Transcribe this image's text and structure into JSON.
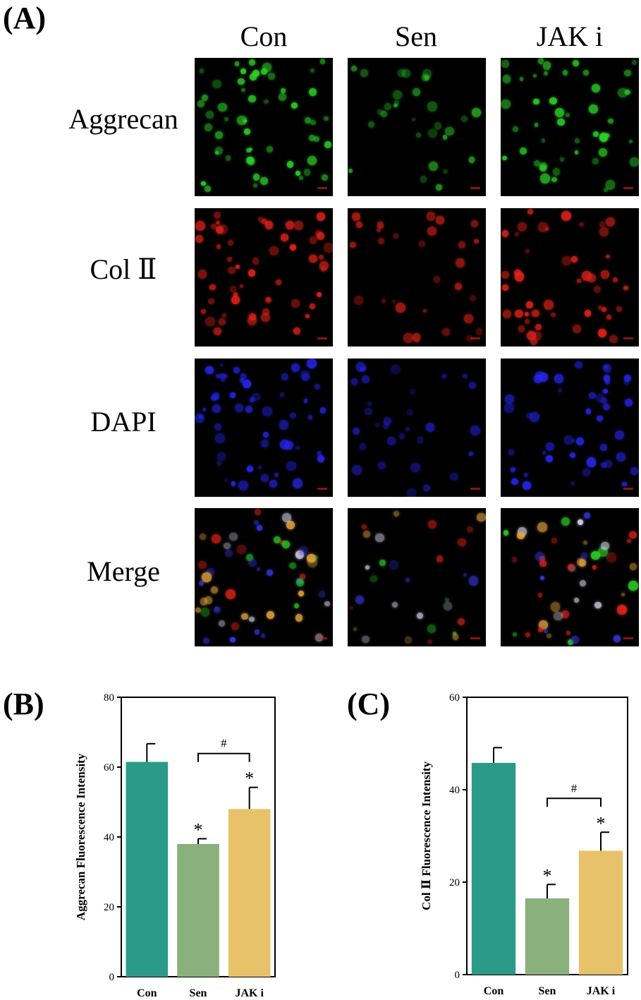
{
  "panel_a": {
    "letter": "(A)",
    "columns": [
      "Con",
      "Sen",
      "JAK i"
    ],
    "rows": [
      {
        "label": "Aggrecan",
        "color": "#2fd12a"
      },
      {
        "label": "Col Ⅱ",
        "color": "#e0241b"
      },
      {
        "label": "DAPI",
        "color": "#2626e6"
      },
      {
        "label": "Merge",
        "color": "#c8c8e0"
      }
    ]
  },
  "panel_b": {
    "letter": "(B)"
  },
  "panel_c": {
    "letter": "(C)"
  },
  "chart_data": [
    {
      "type": "bar",
      "panel": "B",
      "categories": [
        "Con",
        "Sen",
        "JAK i"
      ],
      "values": [
        61.5,
        38,
        48
      ],
      "errors": [
        5.2,
        1.5,
        6.2
      ],
      "colors": [
        "#2b9b88",
        "#8ab07c",
        "#e8c26a"
      ],
      "ylabel": "Aggrecan Fluorescence Intensity",
      "ylim": [
        0,
        80
      ],
      "yticks": [
        0,
        20,
        40,
        60,
        80
      ],
      "significance": [
        "",
        "*",
        "*"
      ],
      "comparison": {
        "from": 1,
        "to": 2,
        "label": "#"
      }
    },
    {
      "type": "bar",
      "panel": "C",
      "categories": [
        "Con",
        "Sen",
        "JAK i"
      ],
      "values": [
        45.8,
        16.5,
        26.8
      ],
      "errors": [
        3.3,
        3.0,
        4.0
      ],
      "colors": [
        "#2b9b88",
        "#8ab07c",
        "#e8c26a"
      ],
      "ylabel": "Col Ⅱ Fluorescence Intensity",
      "ylim": [
        0,
        60
      ],
      "yticks": [
        0,
        20,
        40,
        60
      ],
      "significance": [
        "",
        "*",
        "*"
      ],
      "comparison": {
        "from": 1,
        "to": 2,
        "label": "#"
      }
    }
  ]
}
